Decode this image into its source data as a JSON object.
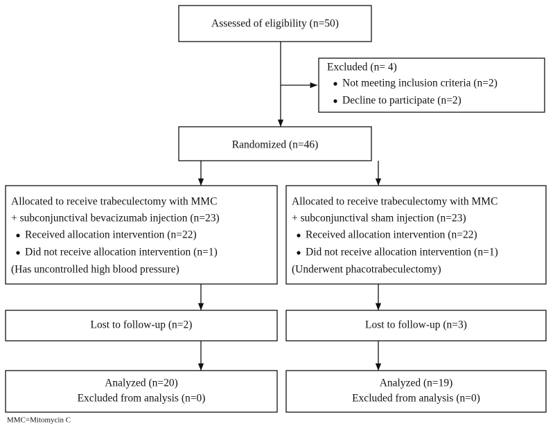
{
  "eligibility": "Assessed of eligibility (n=50)",
  "excluded": {
    "title": "Excluded (n= 4)",
    "items": [
      "Not meeting inclusion criteria (n=2)",
      "Decline to participate (n=2)"
    ]
  },
  "randomized": "Randomized (n=46)",
  "arms": [
    {
      "allocation": {
        "lines": [
          "Allocated to receive trabeculectomy with MMC",
          "+ subconjunctival bevacizumab injection (n=23)"
        ],
        "items": [
          "Received allocation intervention  (n=22)",
          "Did not receive allocation intervention (n=1)"
        ],
        "note": "(Has uncontrolled high blood pressure)"
      },
      "lost": "Lost to follow-up (n=2)",
      "analyzed": [
        "Analyzed (n=20)",
        "Excluded from analysis (n=0)"
      ]
    },
    {
      "allocation": {
        "lines": [
          "Allocated to receive trabeculectomy with MMC",
          "+ subconjunctival sham injection (n=23)"
        ],
        "items": [
          "Received allocation intervention  (n=22)",
          "Did not receive allocation intervention (n=1)"
        ],
        "note": "(Underwent phacotrabeculectomy)"
      },
      "lost": "Lost to follow-up (n=3)",
      "analyzed": [
        "Analyzed (n=19)",
        "Excluded from analysis (n=0)"
      ]
    }
  ],
  "footnote": "MMC=Mitomycin C"
}
